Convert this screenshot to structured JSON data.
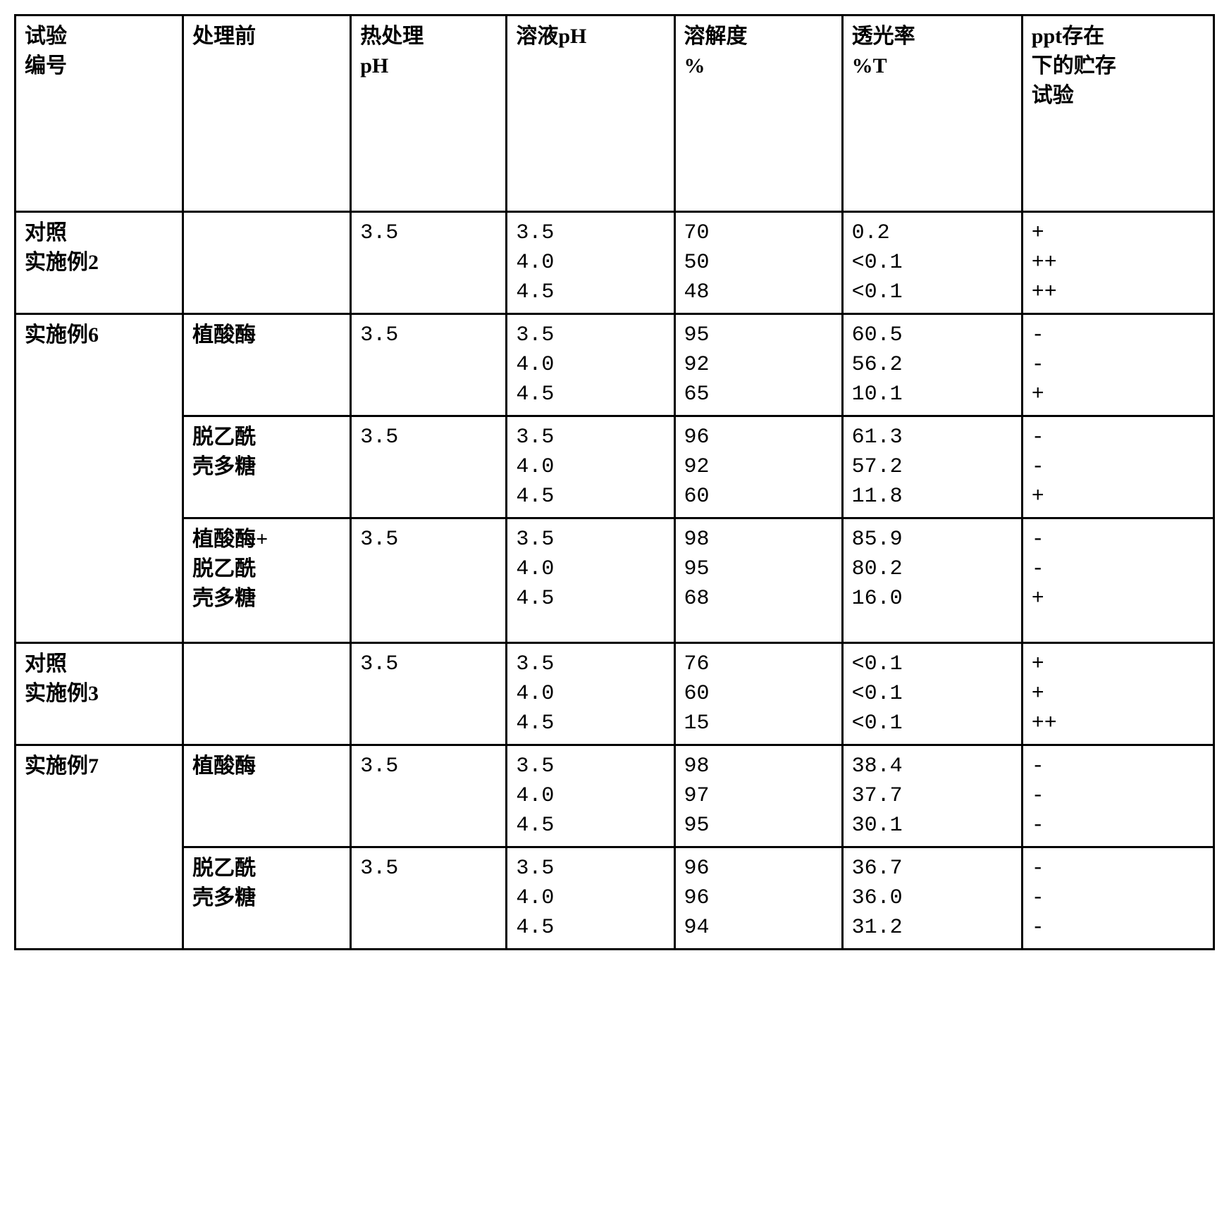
{
  "table": {
    "columns": [
      "试验\n编号",
      "处理前",
      "热处理\npH",
      "溶液pH",
      "溶解度\n%",
      "透光率\n%T",
      "ppt存在\n下的贮存\n试验"
    ],
    "col_widths": [
      "14%",
      "14%",
      "13%",
      "14%",
      "14%",
      "15%",
      "16%"
    ],
    "rows": [
      {
        "c0": "对照\n实施例2",
        "c1": "",
        "c2": "3.5",
        "c3": "3.5\n4.0\n4.5",
        "c4": "70\n50\n48",
        "c5": " 0.2\n<0.1\n<0.1",
        "c6": "+\n++\n++"
      },
      {
        "c0": "实施例6",
        "c0_rowspan": 3,
        "c1": "植酸酶",
        "c2": "3.5",
        "c3": "3.5\n4.0\n4.5",
        "c4": "95\n92\n65",
        "c5": "60.5\n56.2\n10.1",
        "c6": "-\n-\n+"
      },
      {
        "c1": "脱乙酰\n壳多糖",
        "c2": "3.5",
        "c3": "3.5\n4.0\n4.5",
        "c4": "96\n92\n60",
        "c5": "61.3\n57.2\n11.8",
        "c6": "-\n-\n+"
      },
      {
        "c1": "植酸酶+\n脱乙酰\n壳多糖",
        "c2": "3.5",
        "c3": "3.5\n4.0\n4.5",
        "c4": "98\n95\n68",
        "c5": "85.9\n80.2\n16.0",
        "c6": "-\n-\n+",
        "extra_bottom": true
      },
      {
        "c0": "对照\n实施例3",
        "c1": "",
        "c2": "3.5",
        "c3": "3.5\n4.0\n4.5",
        "c4": "76\n60\n15",
        "c5": "<0.1\n<0.1\n<0.1",
        "c6": "+\n+\n++"
      },
      {
        "c0": "实施例7",
        "c0_rowspan": 2,
        "c1": "植酸酶",
        "c2": "3.5",
        "c3": "3.5\n4.0\n4.5",
        "c4": "98\n97\n95",
        "c5": "38.4\n37.7\n30.1",
        "c6": "-\n-\n-"
      },
      {
        "c1": "脱乙酰\n壳多糖",
        "c2": "3.5",
        "c3": "3.5\n4.0\n4.5",
        "c4": "96\n96\n94",
        "c5": "36.7\n36.0\n31.2",
        "c6": "-\n-\n-"
      }
    ]
  }
}
